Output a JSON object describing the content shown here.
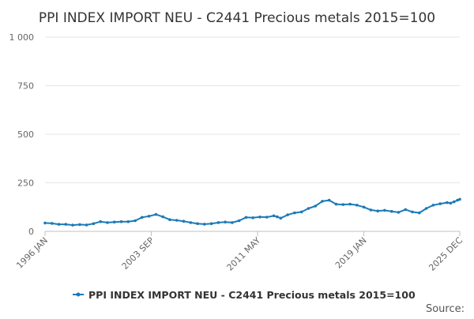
{
  "chart_data": {
    "type": "line",
    "title": "PPI INDEX IMPORT NEU - C2441 Precious metals 2015=100",
    "xlabel": "",
    "ylabel": "",
    "ylim": [
      0,
      1000
    ],
    "xlim": [
      "1996 JAN",
      "2025 DEC"
    ],
    "grid": true,
    "legend_position": "bottom",
    "source_label": "Source:",
    "y_ticks": [
      {
        "value": 0,
        "label": "0"
      },
      {
        "value": 250,
        "label": "250"
      },
      {
        "value": 500,
        "label": "500"
      },
      {
        "value": 750,
        "label": "750"
      },
      {
        "value": 1000,
        "label": "1 000"
      }
    ],
    "x_ticks": [
      {
        "value": "1996-01",
        "label": "1996 JAN"
      },
      {
        "value": "2003-09",
        "label": "2003 SEP"
      },
      {
        "value": "2011-05",
        "label": "2011 MAY"
      },
      {
        "value": "2019-01",
        "label": "2019 JAN"
      },
      {
        "value": "2025-12",
        "label": "2025 DEC"
      }
    ],
    "series": [
      {
        "name": "PPI INDEX IMPORT NEU - C2441 Precious metals 2015=100",
        "color": "#1c7ab8",
        "points": [
          [
            "1996-01",
            43
          ],
          [
            "1996-07",
            41
          ],
          [
            "1997-01",
            36
          ],
          [
            "1997-07",
            36
          ],
          [
            "1998-01",
            32
          ],
          [
            "1998-07",
            35
          ],
          [
            "1999-01",
            33
          ],
          [
            "1999-07",
            40
          ],
          [
            "2000-01",
            50
          ],
          [
            "2000-07",
            45
          ],
          [
            "2001-01",
            48
          ],
          [
            "2001-07",
            50
          ],
          [
            "2002-01",
            50
          ],
          [
            "2002-07",
            55
          ],
          [
            "2003-01",
            72
          ],
          [
            "2003-07",
            78
          ],
          [
            "2004-01",
            87
          ],
          [
            "2004-07",
            75
          ],
          [
            "2005-01",
            60
          ],
          [
            "2005-07",
            57
          ],
          [
            "2006-01",
            52
          ],
          [
            "2006-07",
            45
          ],
          [
            "2007-01",
            40
          ],
          [
            "2007-07",
            37
          ],
          [
            "2008-01",
            40
          ],
          [
            "2008-07",
            45
          ],
          [
            "2009-01",
            48
          ],
          [
            "2009-07",
            45
          ],
          [
            "2010-01",
            55
          ],
          [
            "2010-07",
            72
          ],
          [
            "2011-01",
            70
          ],
          [
            "2011-07",
            74
          ],
          [
            "2012-01",
            73
          ],
          [
            "2012-07",
            80
          ],
          [
            "2012-10",
            75
          ],
          [
            "2013-01",
            68
          ],
          [
            "2013-07",
            85
          ],
          [
            "2014-01",
            95
          ],
          [
            "2014-07",
            100
          ],
          [
            "2015-01",
            118
          ],
          [
            "2015-07",
            130
          ],
          [
            "2016-01",
            155
          ],
          [
            "2016-07",
            160
          ],
          [
            "2017-01",
            140
          ],
          [
            "2017-07",
            138
          ],
          [
            "2018-01",
            140
          ],
          [
            "2018-07",
            135
          ],
          [
            "2019-01",
            125
          ],
          [
            "2019-07",
            110
          ],
          [
            "2020-01",
            105
          ],
          [
            "2020-07",
            108
          ],
          [
            "2021-01",
            103
          ],
          [
            "2021-07",
            98
          ],
          [
            "2022-01",
            112
          ],
          [
            "2022-07",
            100
          ],
          [
            "2023-01",
            95
          ],
          [
            "2023-07",
            118
          ],
          [
            "2024-01",
            135
          ],
          [
            "2024-07",
            142
          ],
          [
            "2025-01",
            148
          ],
          [
            "2025-04",
            145
          ],
          [
            "2025-07",
            152
          ],
          [
            "2025-10",
            160
          ],
          [
            "2025-12",
            165
          ]
        ]
      }
    ]
  }
}
